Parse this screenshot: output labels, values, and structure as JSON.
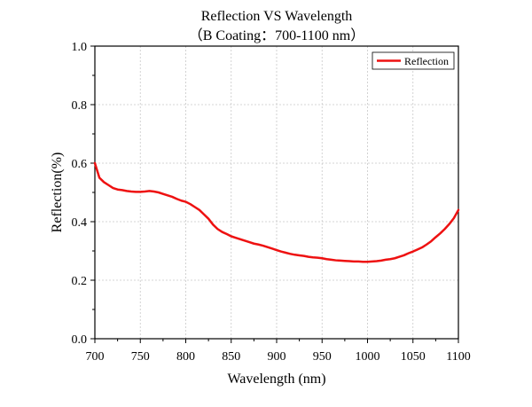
{
  "chart_data": {
    "type": "line",
    "title": "Reflection VS Wavelength",
    "subtitle": "（B Coating：700-1100 nm）",
    "xlabel": "Wavelength (nm)",
    "ylabel": "Reflection(%)",
    "xlim": [
      700,
      1100
    ],
    "ylim": [
      0.0,
      1.0
    ],
    "x_ticks": [
      "700",
      "750",
      "800",
      "850",
      "900",
      "950",
      "1000",
      "1050",
      "1100"
    ],
    "y_ticks": [
      "0.0",
      "0.2",
      "0.4",
      "0.6",
      "0.8",
      "1.0"
    ],
    "grid": true,
    "legend_position": "top-right",
    "series": [
      {
        "name": "Reflection",
        "color": "#ee1111",
        "x": [
          700,
          702,
          705,
          710,
          715,
          720,
          725,
          730,
          735,
          740,
          745,
          750,
          755,
          760,
          765,
          770,
          775,
          780,
          785,
          790,
          795,
          800,
          805,
          810,
          815,
          820,
          825,
          830,
          835,
          840,
          845,
          850,
          855,
          860,
          865,
          870,
          875,
          880,
          885,
          890,
          895,
          900,
          905,
          910,
          915,
          920,
          925,
          930,
          935,
          940,
          945,
          950,
          955,
          960,
          965,
          970,
          975,
          980,
          985,
          990,
          995,
          1000,
          1005,
          1010,
          1015,
          1020,
          1025,
          1030,
          1035,
          1040,
          1045,
          1050,
          1055,
          1060,
          1065,
          1070,
          1075,
          1080,
          1085,
          1090,
          1095,
          1100
        ],
        "y": [
          0.6,
          0.58,
          0.55,
          0.535,
          0.525,
          0.515,
          0.51,
          0.508,
          0.505,
          0.503,
          0.502,
          0.502,
          0.503,
          0.505,
          0.503,
          0.5,
          0.495,
          0.49,
          0.485,
          0.478,
          0.472,
          0.468,
          0.46,
          0.45,
          0.44,
          0.425,
          0.41,
          0.39,
          0.375,
          0.365,
          0.358,
          0.35,
          0.345,
          0.34,
          0.335,
          0.33,
          0.325,
          0.322,
          0.318,
          0.313,
          0.308,
          0.303,
          0.298,
          0.294,
          0.29,
          0.287,
          0.285,
          0.283,
          0.28,
          0.278,
          0.277,
          0.275,
          0.272,
          0.27,
          0.268,
          0.267,
          0.266,
          0.265,
          0.264,
          0.264,
          0.263,
          0.263,
          0.264,
          0.265,
          0.267,
          0.27,
          0.272,
          0.275,
          0.28,
          0.285,
          0.292,
          0.298,
          0.305,
          0.312,
          0.322,
          0.333,
          0.347,
          0.36,
          0.375,
          0.392,
          0.412,
          0.44
        ]
      }
    ]
  }
}
